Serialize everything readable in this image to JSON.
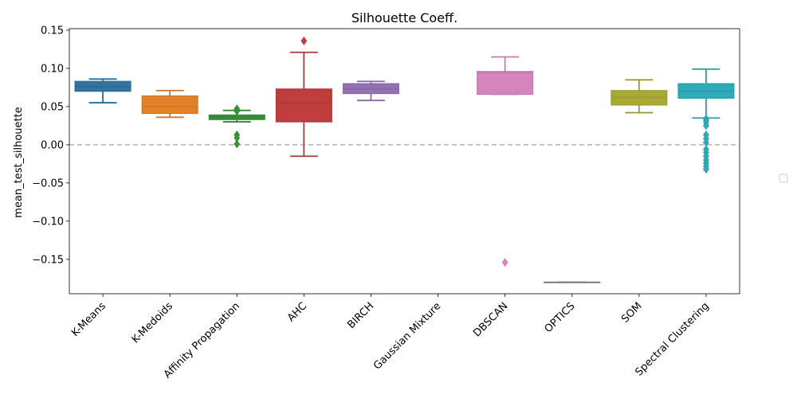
{
  "chart_data": {
    "type": "box",
    "title": "Silhouette Coeff.",
    "xlabel": "",
    "ylabel": "mean_test_silhouette",
    "ylim": [
      -0.195,
      0.152
    ],
    "yticks": [
      0.15,
      0.1,
      0.05,
      0.0,
      -0.05,
      -0.1,
      -0.15
    ],
    "ytick_labels": [
      "0.15",
      "0.10",
      "0.05",
      "0.00",
      "−0.05",
      "−0.10",
      "−0.15"
    ],
    "reference_line": {
      "y": 0.0,
      "style": "dashed",
      "color": "#b0b0b0"
    },
    "grid": false,
    "legend": {
      "placement": "right",
      "entries": []
    },
    "categories": [
      "K-Means",
      "K-Medoids",
      "Affinity Propagation",
      "AHC",
      "BIRCH",
      "Gaussian Mixture",
      "DBSCAN",
      "OPTICS",
      "SOM",
      "Spectral Clustering"
    ],
    "boxes": [
      {
        "category": "K-Means",
        "color": "#3274a1",
        "whisker_low": 0.055,
        "q1": 0.07,
        "median": 0.076,
        "q3": 0.083,
        "whisker_high": 0.086,
        "fliers": []
      },
      {
        "category": "K-Medoids",
        "color": "#e1812c",
        "whisker_low": 0.036,
        "q1": 0.041,
        "median": 0.05,
        "q3": 0.064,
        "whisker_high": 0.071,
        "fliers": []
      },
      {
        "category": "Affinity Propagation",
        "color": "#3a923a",
        "whisker_low": 0.03,
        "q1": 0.033,
        "median": 0.036,
        "q3": 0.039,
        "whisker_high": 0.045,
        "fliers": [
          0.047,
          0.044,
          0.013,
          0.009,
          0.001
        ]
      },
      {
        "category": "AHC",
        "color": "#c03d3e",
        "whisker_low": -0.015,
        "q1": 0.03,
        "median": 0.055,
        "q3": 0.073,
        "whisker_high": 0.121,
        "fliers": [
          0.136
        ]
      },
      {
        "category": "BIRCH",
        "color": "#9372b2",
        "whisker_low": 0.058,
        "q1": 0.067,
        "median": 0.073,
        "q3": 0.08,
        "whisker_high": 0.083,
        "fliers": []
      },
      {
        "category": "Gaussian Mixture",
        "color": "#845b53",
        "empty": true
      },
      {
        "category": "DBSCAN",
        "color": "#d684bd",
        "whisker_low": 0.066,
        "q1": 0.066,
        "median": 0.094,
        "q3": 0.096,
        "whisker_high": 0.115,
        "fliers": [
          -0.154
        ]
      },
      {
        "category": "OPTICS",
        "color": "#7f7f7f",
        "whisker_low": -0.18,
        "q1": -0.18,
        "median": -0.18,
        "q3": -0.18,
        "whisker_high": -0.18,
        "fliers": []
      },
      {
        "category": "SOM",
        "color": "#a9aa35",
        "whisker_low": 0.042,
        "q1": 0.052,
        "median": 0.062,
        "q3": 0.071,
        "whisker_high": 0.085,
        "fliers": []
      },
      {
        "category": "Spectral Clustering",
        "color": "#2eabb8",
        "whisker_low": 0.035,
        "q1": 0.061,
        "median": 0.07,
        "q3": 0.08,
        "whisker_high": 0.099,
        "fliers": [
          0.034,
          0.032,
          0.029,
          0.025,
          0.013,
          0.008,
          0.003,
          -0.006,
          -0.01,
          -0.015,
          -0.02,
          -0.024,
          -0.028,
          -0.032
        ]
      }
    ]
  }
}
